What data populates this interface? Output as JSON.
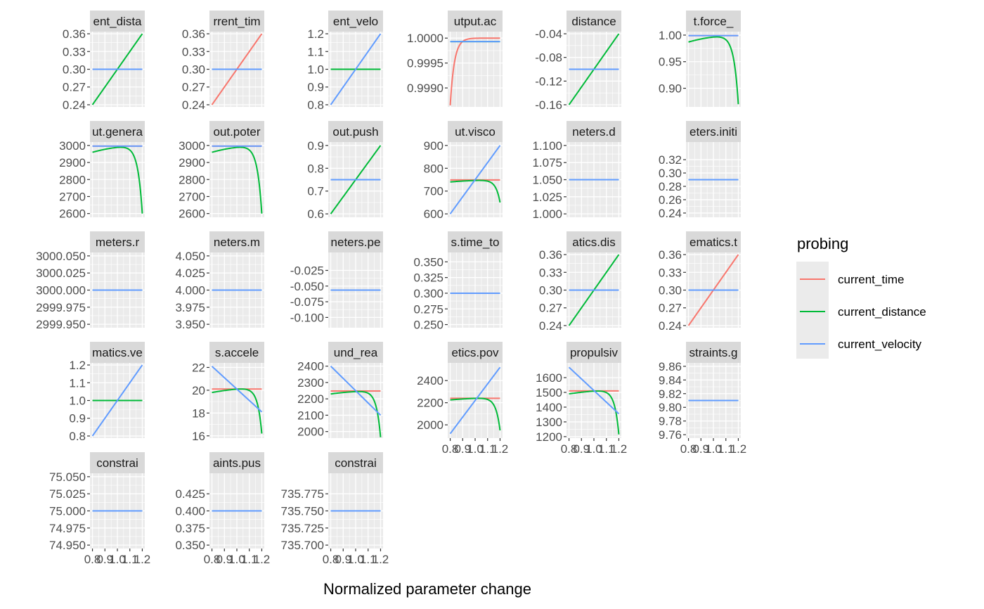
{
  "chart_data": {
    "type": "line",
    "xlabel": "Normalized parameter change",
    "x_tick_labels": [
      "0.8",
      "0.9",
      "1.0",
      "1.1",
      "1.2"
    ],
    "x_range": [
      0.8,
      1.2
    ],
    "legend": {
      "title": "probing",
      "position": "right",
      "entries": [
        {
          "name": "current_time",
          "color": "#F8766D"
        },
        {
          "name": "current_distance",
          "color": "#00BA38"
        },
        {
          "name": "current_velocity",
          "color": "#619CFF"
        }
      ]
    },
    "panels": [
      {
        "strip": "ent_dista",
        "ylim": [
          0.2364,
          0.3636
        ],
        "yticks": [
          "0.24",
          "0.27",
          "0.30",
          "0.33",
          "0.36"
        ],
        "series": [
          {
            "name": "current_time",
            "kind": "const",
            "value": 0.3
          },
          {
            "name": "current_distance",
            "kind": "linear",
            "y0": 0.24,
            "y1": 0.36
          },
          {
            "name": "current_velocity",
            "kind": "const",
            "value": 0.3
          }
        ]
      },
      {
        "strip": "rrent_tim",
        "ylim": [
          0.2364,
          0.3636
        ],
        "yticks": [
          "0.24",
          "0.27",
          "0.30",
          "0.33",
          "0.36"
        ],
        "series": [
          {
            "name": "current_time",
            "kind": "linear",
            "y0": 0.24,
            "y1": 0.36
          },
          {
            "name": "current_distance",
            "kind": "const",
            "value": 0.3
          },
          {
            "name": "current_velocity",
            "kind": "const",
            "value": 0.3
          }
        ]
      },
      {
        "strip": "ent_velo",
        "ylim": [
          0.788,
          1.212
        ],
        "yticks": [
          "0.8",
          "0.9",
          "1.0",
          "1.1",
          "1.2"
        ],
        "series": [
          {
            "name": "current_time",
            "kind": "const",
            "value": 1.0
          },
          {
            "name": "current_distance",
            "kind": "const",
            "value": 1.0
          },
          {
            "name": "current_velocity",
            "kind": "linear",
            "y0": 0.8,
            "y1": 1.2
          }
        ]
      },
      {
        "strip": "utput.ac",
        "ylim": [
          0.99862,
          1.00013
        ],
        "yticks": [
          "0.9990",
          "0.9995",
          "1.0000"
        ],
        "series": [
          {
            "name": "current_time",
            "kind": "saturate",
            "ymin": 0.99865,
            "ymax": 1.0,
            "rate": 30
          },
          {
            "name": "current_distance",
            "kind": "const",
            "value": 0.99993
          },
          {
            "name": "current_velocity",
            "kind": "const",
            "value": 0.99993
          }
        ]
      },
      {
        "strip": "distance",
        "ylim": [
          -0.1636,
          -0.0364
        ],
        "yticks": [
          "-0.04",
          "-0.08",
          "-0.12",
          "-0.16"
        ],
        "series": [
          {
            "name": "current_time",
            "kind": "const",
            "value": -0.1
          },
          {
            "name": "current_distance",
            "kind": "linear",
            "y0": -0.16,
            "y1": -0.04
          },
          {
            "name": "current_velocity",
            "kind": "const",
            "value": -0.1
          }
        ]
      },
      {
        "strip": "t.force_",
        "ylim": [
          0.865,
          1.0065
        ],
        "yticks": [
          "0.90",
          "0.95",
          "1.00"
        ],
        "series": [
          {
            "name": "current_time",
            "kind": "const",
            "value": 0.999
          },
          {
            "name": "current_distance",
            "kind": "drop",
            "ystart": 0.987,
            "ypeak": 1.0,
            "yend": 0.87,
            "k": 28,
            "curv": 0.8
          },
          {
            "name": "current_velocity",
            "kind": "const",
            "value": 0.999
          }
        ]
      },
      {
        "strip": "ut.genera",
        "ylim": [
          2578,
          3020
        ],
        "yticks": [
          "2600",
          "2700",
          "2800",
          "2900",
          "3000"
        ],
        "series": [
          {
            "name": "current_time",
            "kind": "const",
            "value": 2996
          },
          {
            "name": "current_distance",
            "kind": "drop",
            "ystart": 2960,
            "ypeak": 3000,
            "yend": 2600,
            "k": 28,
            "curv": 0.8
          },
          {
            "name": "current_velocity",
            "kind": "const",
            "value": 2996
          }
        ]
      },
      {
        "strip": "out.poter",
        "ylim": [
          2578,
          3020
        ],
        "yticks": [
          "2600",
          "2700",
          "2800",
          "2900",
          "3000"
        ],
        "series": [
          {
            "name": "current_time",
            "kind": "const",
            "value": 2996
          },
          {
            "name": "current_distance",
            "kind": "drop",
            "ystart": 2960,
            "ypeak": 3000,
            "yend": 2600,
            "k": 28,
            "curv": 0.8
          },
          {
            "name": "current_velocity",
            "kind": "const",
            "value": 2996
          }
        ]
      },
      {
        "strip": "out.push",
        "ylim": [
          0.585,
          0.915
        ],
        "yticks": [
          "0.6",
          "0.7",
          "0.8",
          "0.9"
        ],
        "series": [
          {
            "name": "current_time",
            "kind": "const",
            "value": 0.75
          },
          {
            "name": "current_distance",
            "kind": "linear",
            "y0": 0.6,
            "y1": 0.9
          },
          {
            "name": "current_velocity",
            "kind": "const",
            "value": 0.75
          }
        ]
      },
      {
        "strip": "ut.visco",
        "ylim": [
          585,
          915
        ],
        "yticks": [
          "600",
          "700",
          "800",
          "900"
        ],
        "series": [
          {
            "name": "current_time",
            "kind": "const",
            "value": 749
          },
          {
            "name": "current_distance",
            "kind": "drop",
            "ystart": 740,
            "ypeak": 749,
            "yend": 650,
            "k": 30,
            "curv": 0.8
          },
          {
            "name": "current_velocity",
            "kind": "linear",
            "y0": 600,
            "y1": 900
          }
        ]
      },
      {
        "strip": "neters.d",
        "ylim": [
          0.995,
          1.105
        ],
        "yticks": [
          "1.000",
          "1.025",
          "1.050",
          "1.075",
          "1.100"
        ],
        "series": [
          {
            "name": "current_time",
            "kind": "const",
            "value": 1.05
          },
          {
            "name": "current_distance",
            "kind": "const",
            "value": 1.05
          },
          {
            "name": "current_velocity",
            "kind": "const",
            "value": 1.05
          }
        ]
      },
      {
        "strip": "eters.initi",
        "ylim": [
          0.2336,
          0.3464
        ],
        "yticks": [
          "0.24",
          "0.26",
          "0.28",
          "0.30",
          "0.32"
        ],
        "series": [
          {
            "name": "current_time",
            "kind": "const",
            "value": 0.29
          },
          {
            "name": "current_distance",
            "kind": "const",
            "value": 0.29
          },
          {
            "name": "current_velocity",
            "kind": "const",
            "value": 0.29
          }
        ]
      },
      {
        "strip": "meters.r",
        "ylim": [
          2999.945,
          3000.055
        ],
        "yticks": [
          "2999.950",
          "2999.975",
          "3000.000",
          "3000.025",
          "3000.050"
        ],
        "series": [
          {
            "name": "current_time",
            "kind": "const",
            "value": 3000
          },
          {
            "name": "current_distance",
            "kind": "const",
            "value": 3000
          },
          {
            "name": "current_velocity",
            "kind": "const",
            "value": 3000
          }
        ]
      },
      {
        "strip": "neters.m",
        "ylim": [
          3.945,
          4.055
        ],
        "yticks": [
          "3.950",
          "3.975",
          "4.000",
          "4.025",
          "4.050"
        ],
        "series": [
          {
            "name": "current_time",
            "kind": "const",
            "value": 4
          },
          {
            "name": "current_distance",
            "kind": "const",
            "value": 4
          },
          {
            "name": "current_velocity",
            "kind": "const",
            "value": 4
          }
        ]
      },
      {
        "strip": "neters.pe",
        "ylim": [
          -0.1164,
          0.0036
        ],
        "yticks": [
          "-0.025",
          "-0.050",
          "-0.075",
          "-0.100"
        ],
        "series": [
          {
            "name": "current_time",
            "kind": "const",
            "value": -0.0564
          },
          {
            "name": "current_distance",
            "kind": "const",
            "value": -0.0564
          },
          {
            "name": "current_velocity",
            "kind": "const",
            "value": -0.0564
          }
        ]
      },
      {
        "strip": "s.time_to",
        "ylim": [
          0.245,
          0.365
        ],
        "yticks": [
          "0.250",
          "0.275",
          "0.300",
          "0.325",
          "0.350"
        ],
        "series": [
          {
            "name": "current_time",
            "kind": "const",
            "value": 0.3
          },
          {
            "name": "current_distance",
            "kind": "const",
            "value": 0.3
          },
          {
            "name": "current_velocity",
            "kind": "const",
            "value": 0.3
          }
        ]
      },
      {
        "strip": "atics.dis",
        "ylim": [
          0.2364,
          0.3636
        ],
        "yticks": [
          "0.24",
          "0.27",
          "0.30",
          "0.33",
          "0.36"
        ],
        "series": [
          {
            "name": "current_time",
            "kind": "const",
            "value": 0.3
          },
          {
            "name": "current_distance",
            "kind": "linear",
            "y0": 0.24,
            "y1": 0.36
          },
          {
            "name": "current_velocity",
            "kind": "const",
            "value": 0.3
          }
        ]
      },
      {
        "strip": "ematics.t",
        "ylim": [
          0.2364,
          0.3636
        ],
        "yticks": [
          "0.24",
          "0.27",
          "0.30",
          "0.33",
          "0.36"
        ],
        "series": [
          {
            "name": "current_time",
            "kind": "linear",
            "y0": 0.24,
            "y1": 0.36
          },
          {
            "name": "current_distance",
            "kind": "const",
            "value": 0.3
          },
          {
            "name": "current_velocity",
            "kind": "const",
            "value": 0.3
          }
        ]
      },
      {
        "strip": "matics.ve",
        "ylim": [
          0.788,
          1.212
        ],
        "yticks": [
          "0.8",
          "0.9",
          "1.0",
          "1.1",
          "1.2"
        ],
        "series": [
          {
            "name": "current_time",
            "kind": "const",
            "value": 1.0
          },
          {
            "name": "current_distance",
            "kind": "const",
            "value": 1.0
          },
          {
            "name": "current_velocity",
            "kind": "linear",
            "y0": 0.8,
            "y1": 1.2
          }
        ]
      },
      {
        "strip": "s.accele",
        "ylim": [
          15.8,
          22.4
        ],
        "yticks": [
          "16",
          "18",
          "20",
          "22"
        ],
        "series": [
          {
            "name": "current_time",
            "kind": "const",
            "value": 20.1
          },
          {
            "name": "current_distance",
            "kind": "drop",
            "ystart": 19.8,
            "ypeak": 20.2,
            "yend": 16.2,
            "k": 30,
            "curv": 0.8
          },
          {
            "name": "current_velocity",
            "kind": "linear",
            "y0": 22.1,
            "y1": 18.1
          }
        ]
      },
      {
        "strip": "und_rea",
        "ylim": [
          1960,
          2420
        ],
        "yticks": [
          "2000",
          "2100",
          "2200",
          "2300",
          "2400"
        ],
        "series": [
          {
            "name": "current_time",
            "kind": "const",
            "value": 2248
          },
          {
            "name": "current_distance",
            "kind": "drop",
            "ystart": 2230,
            "ypeak": 2250,
            "yend": 1965,
            "k": 30,
            "curv": 0.8
          },
          {
            "name": "current_velocity",
            "kind": "linear",
            "y0": 2400,
            "y1": 2100
          }
        ]
      },
      {
        "strip": "etics.pov",
        "ylim": [
          1880,
          2560
        ],
        "yticks": [
          "2000",
          "2200",
          "2400"
        ],
        "series": [
          {
            "name": "current_time",
            "kind": "const",
            "value": 2240
          },
          {
            "name": "current_distance",
            "kind": "drop",
            "ystart": 2225,
            "ypeak": 2245,
            "yend": 1950,
            "k": 30,
            "curv": 0.8
          },
          {
            "name": "current_velocity",
            "kind": "linear",
            "y0": 1920,
            "y1": 2520
          }
        ]
      },
      {
        "strip": "propulsiv",
        "ylim": [
          1190,
          1700
        ],
        "yticks": [
          "1200",
          "1300",
          "1400",
          "1500",
          "1600"
        ],
        "series": [
          {
            "name": "current_time",
            "kind": "const",
            "value": 1510
          },
          {
            "name": "current_distance",
            "kind": "drop",
            "ystart": 1490,
            "ypeak": 1515,
            "yend": 1215,
            "k": 30,
            "curv": 0.8
          },
          {
            "name": "current_velocity",
            "kind": "linear",
            "y0": 1670,
            "y1": 1355
          }
        ]
      },
      {
        "strip": "straints.g",
        "ylim": [
          9.755,
          9.865
        ],
        "yticks": [
          "9.76",
          "9.78",
          "9.80",
          "9.82",
          "9.84",
          "9.86"
        ],
        "series": [
          {
            "name": "current_time",
            "kind": "const",
            "value": 9.81
          },
          {
            "name": "current_distance",
            "kind": "const",
            "value": 9.81
          },
          {
            "name": "current_velocity",
            "kind": "const",
            "value": 9.81
          }
        ]
      },
      {
        "strip": "constrai",
        "ylim": [
          74.945,
          75.055
        ],
        "yticks": [
          "74.950",
          "74.975",
          "75.000",
          "75.025",
          "75.050"
        ],
        "series": [
          {
            "name": "current_time",
            "kind": "const",
            "value": 75
          },
          {
            "name": "current_distance",
            "kind": "const",
            "value": 75
          },
          {
            "name": "current_velocity",
            "kind": "const",
            "value": 75
          }
        ]
      },
      {
        "strip": "aints.pus",
        "ylim": [
          0.345,
          0.455
        ],
        "yticks": [
          "0.350",
          "0.375",
          "0.400",
          "0.425"
        ],
        "series": [
          {
            "name": "current_time",
            "kind": "const",
            "value": 0.4
          },
          {
            "name": "current_distance",
            "kind": "const",
            "value": 0.4
          },
          {
            "name": "current_velocity",
            "kind": "const",
            "value": 0.4
          }
        ]
      },
      {
        "strip": "constrai",
        "ylim": [
          735.695,
          735.805
        ],
        "yticks": [
          "735.700",
          "735.725",
          "735.750",
          "735.775"
        ],
        "series": [
          {
            "name": "current_time",
            "kind": "const",
            "value": 735.75
          },
          {
            "name": "current_distance",
            "kind": "const",
            "value": 735.75
          },
          {
            "name": "current_velocity",
            "kind": "const",
            "value": 735.75
          }
        ]
      }
    ]
  }
}
